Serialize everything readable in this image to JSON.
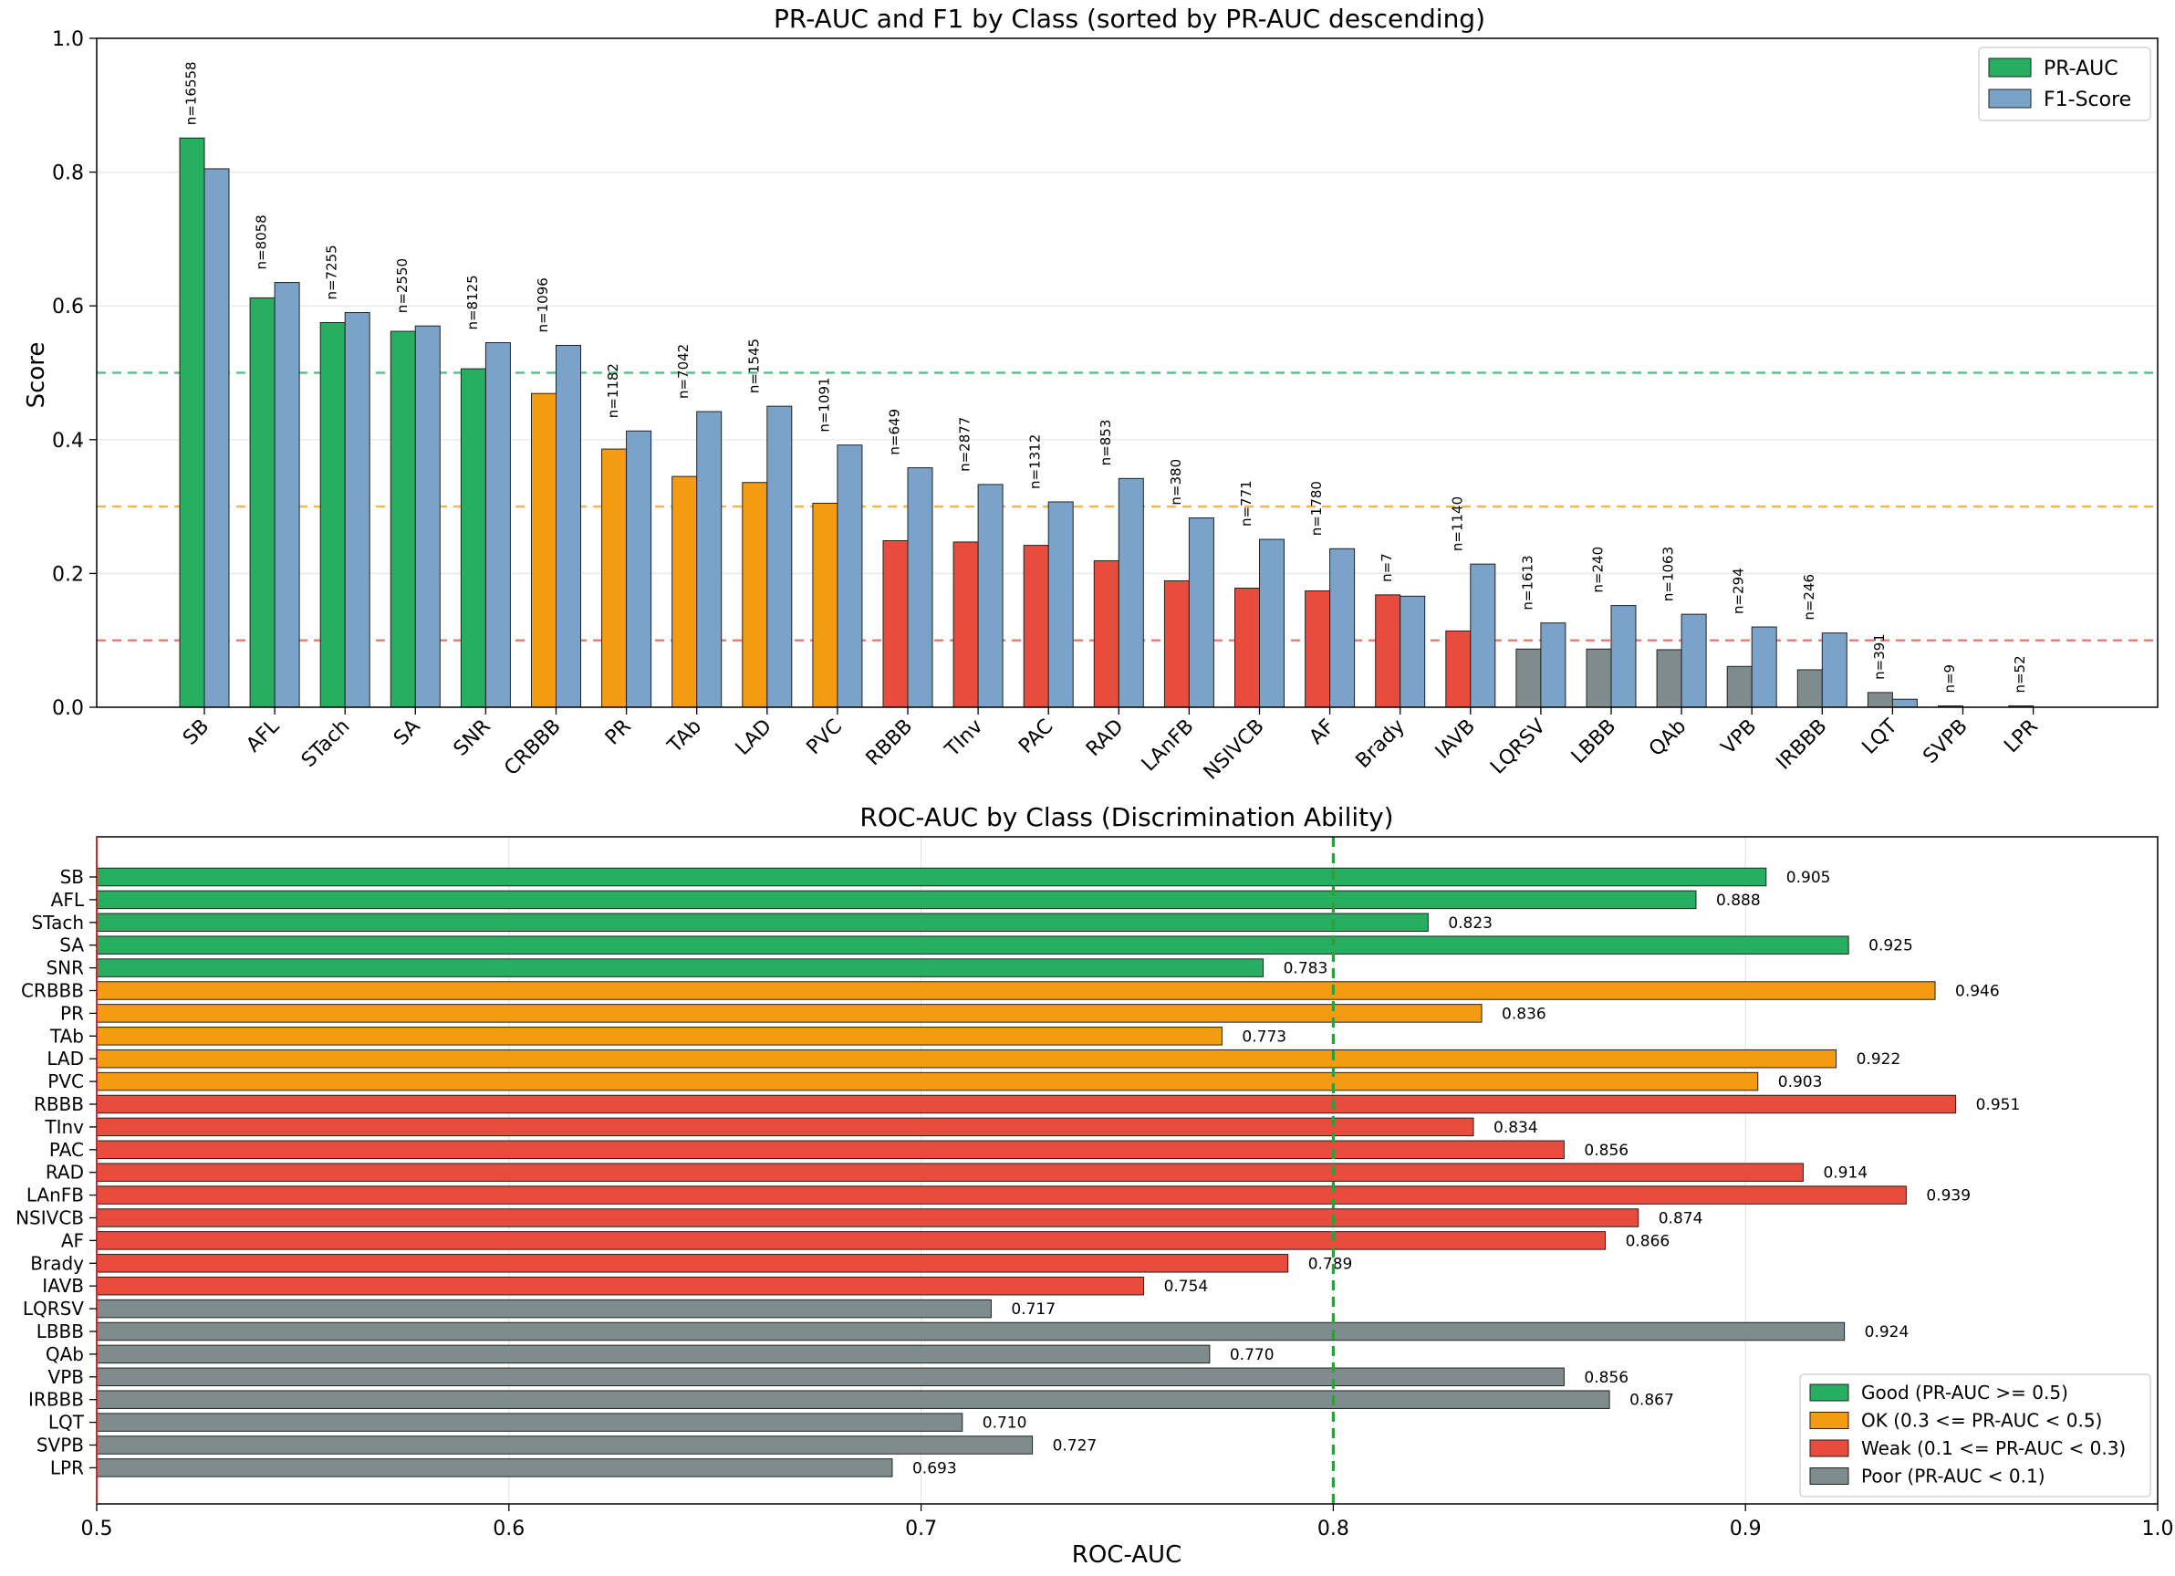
{
  "chart_data": [
    {
      "type": "bar",
      "title": "PR-AUC and F1 by Class (sorted by PR-AUC descending)",
      "xlabel": "",
      "ylabel": "Score",
      "ylim": [
        0,
        1.0
      ],
      "yticks": [
        "0.0",
        "0.2",
        "0.4",
        "0.6",
        "0.8",
        "1.0"
      ],
      "grid": true,
      "legend_position": "top-right",
      "categories": [
        "SB",
        "AFL",
        "STach",
        "SA",
        "SNR",
        "CRBBB",
        "PR",
        "TAb",
        "LAD",
        "PVC",
        "RBBB",
        "TInv",
        "PAC",
        "RAD",
        "LAnFB",
        "NSIVCB",
        "AF",
        "Brady",
        "IAVB",
        "LQRSV",
        "LBBB",
        "QAb",
        "VPB",
        "IRBBB",
        "LQT",
        "SVPB",
        "LPR"
      ],
      "counts": [
        "n=16558",
        "n=8058",
        "n=7255",
        "n=2550",
        "n=8125",
        "n=1096",
        "n=1182",
        "n=7042",
        "n=1545",
        "n=1091",
        "n=649",
        "n=2877",
        "n=1312",
        "n=853",
        "n=380",
        "n=771",
        "n=1780",
        "n=7",
        "n=1140",
        "n=1613",
        "n=240",
        "n=1063",
        "n=294",
        "n=246",
        "n=391",
        "n=9",
        "n=52"
      ],
      "tier": [
        "good",
        "good",
        "good",
        "good",
        "good",
        "ok",
        "ok",
        "ok",
        "ok",
        "ok",
        "weak",
        "weak",
        "weak",
        "weak",
        "weak",
        "weak",
        "weak",
        "weak",
        "weak",
        "poor",
        "poor",
        "poor",
        "poor",
        "poor",
        "poor",
        "poor",
        "poor"
      ],
      "series": [
        {
          "name": "PR-AUC",
          "values": [
            0.851,
            0.612,
            0.575,
            0.562,
            0.506,
            0.469,
            0.386,
            0.345,
            0.336,
            0.305,
            0.249,
            0.247,
            0.242,
            0.219,
            0.189,
            0.178,
            0.174,
            0.168,
            0.114,
            0.087,
            0.087,
            0.086,
            0.061,
            0.056,
            0.022,
            0.002,
            0.002
          ]
        },
        {
          "name": "F1-Score",
          "values": [
            0.805,
            0.635,
            0.59,
            0.57,
            0.545,
            0.541,
            0.413,
            0.442,
            0.45,
            0.392,
            0.358,
            0.333,
            0.307,
            0.342,
            0.283,
            0.251,
            0.237,
            0.166,
            0.214,
            0.126,
            0.152,
            0.139,
            0.12,
            0.111,
            0.012,
            0.0,
            0.0
          ]
        }
      ],
      "reference_lines": [
        {
          "value": 0.5,
          "color": "#27ae60"
        },
        {
          "value": 0.3,
          "color": "#f39c12"
        },
        {
          "value": 0.1,
          "color": "#e74c3c"
        }
      ]
    },
    {
      "type": "barh",
      "title": "ROC-AUC by Class (Discrimination Ability)",
      "xlabel": "ROC-AUC",
      "xlim": [
        0.5,
        1.0
      ],
      "xticks": [
        "0.5",
        "0.6",
        "0.7",
        "0.8",
        "0.9",
        "1.0"
      ],
      "grid": true,
      "legend_position": "bottom-right",
      "categories": [
        "SB",
        "AFL",
        "STach",
        "SA",
        "SNR",
        "CRBBB",
        "PR",
        "TAb",
        "LAD",
        "PVC",
        "RBBB",
        "TInv",
        "PAC",
        "RAD",
        "LAnFB",
        "NSIVCB",
        "AF",
        "Brady",
        "IAVB",
        "LQRSV",
        "LBBB",
        "QAb",
        "VPB",
        "IRBBB",
        "LQT",
        "SVPB",
        "LPR"
      ],
      "values": [
        0.905,
        0.888,
        0.823,
        0.925,
        0.783,
        0.946,
        0.836,
        0.773,
        0.922,
        0.903,
        0.951,
        0.834,
        0.856,
        0.914,
        0.939,
        0.874,
        0.866,
        0.789,
        0.754,
        0.717,
        0.924,
        0.77,
        0.856,
        0.867,
        0.71,
        0.727,
        0.693
      ],
      "value_labels": [
        "0.905",
        "0.888",
        "0.823",
        "0.925",
        "0.783",
        "0.946",
        "0.836",
        "0.773",
        "0.922",
        "0.903",
        "0.951",
        "0.834",
        "0.856",
        "0.914",
        "0.939",
        "0.874",
        "0.866",
        "0.789",
        "0.754",
        "0.717",
        "0.924",
        "0.770",
        "0.856",
        "0.867",
        "0.710",
        "0.727",
        "0.693"
      ],
      "tier": [
        "good",
        "good",
        "good",
        "good",
        "good",
        "ok",
        "ok",
        "ok",
        "ok",
        "ok",
        "weak",
        "weak",
        "weak",
        "weak",
        "weak",
        "weak",
        "weak",
        "weak",
        "weak",
        "poor",
        "poor",
        "poor",
        "poor",
        "poor",
        "poor",
        "poor",
        "poor"
      ],
      "reference_line": {
        "value": 0.8,
        "color": "#2e9e3e"
      },
      "legend": [
        {
          "tier": "good",
          "label": "Good (PR-AUC >= 0.5)"
        },
        {
          "tier": "ok",
          "label": "OK (0.3 <= PR-AUC < 0.5)"
        },
        {
          "tier": "weak",
          "label": "Weak (0.1 <= PR-AUC < 0.3)"
        },
        {
          "tier": "poor",
          "label": "Poor (PR-AUC < 0.1)"
        }
      ]
    }
  ],
  "colors": {
    "good": "#27ae60",
    "ok": "#f39c12",
    "weak": "#e74c3c",
    "poor": "#7f8c8d",
    "f1": "#7ba3c9"
  }
}
